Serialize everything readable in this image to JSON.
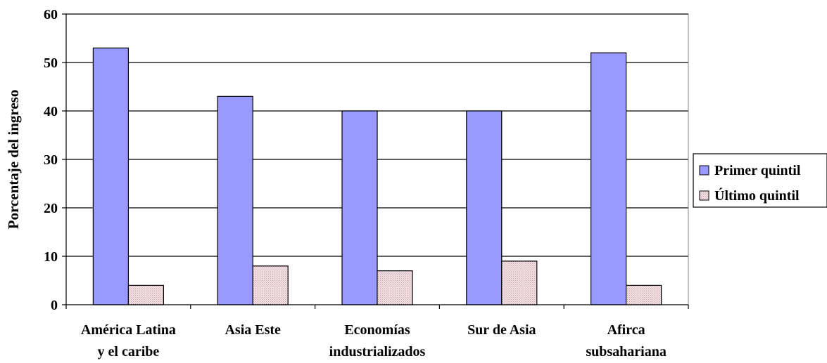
{
  "chart_data": {
    "type": "bar",
    "ylabel": "Porcentaje del ingreso",
    "xlabel": "",
    "ylim": [
      0,
      60
    ],
    "yticks": [
      "0",
      "10",
      "20",
      "30",
      "40",
      "50",
      "60"
    ],
    "grid": true,
    "legend_position": "right",
    "categories": [
      [
        "América Latina",
        "y el caribe"
      ],
      [
        "Asia Este"
      ],
      [
        "Economías",
        "industrializados"
      ],
      [
        "Sur de Asia"
      ],
      [
        "Afirca",
        "subsahariana"
      ]
    ],
    "series": [
      {
        "name": "Primer quintil",
        "values": [
          53,
          43,
          40,
          40,
          52
        ],
        "color": "#9999ff",
        "pattern": "solid"
      },
      {
        "name": "Último quintil",
        "values": [
          4,
          8,
          7,
          9,
          4
        ],
        "color": "#e8c8cc",
        "pattern": "stipple"
      }
    ]
  }
}
